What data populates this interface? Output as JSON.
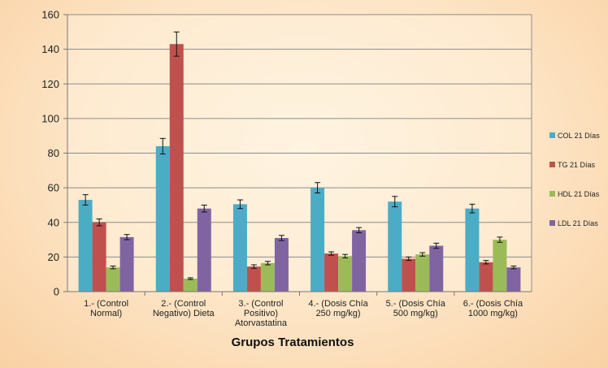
{
  "chart_data": {
    "type": "bar",
    "xlabel": "Grupos Tratamientos",
    "ylabel": "",
    "ylim": [
      0,
      160
    ],
    "yticks": [
      0,
      20,
      40,
      60,
      80,
      100,
      120,
      140,
      160
    ],
    "grid": true,
    "legend_position": "right",
    "categories": [
      [
        "1.- (Control",
        "Normal)"
      ],
      [
        "2.- (Control",
        "Negativo) Dieta"
      ],
      [
        "3.- (Control",
        "Positivo)",
        "Atorvastatina"
      ],
      [
        "4.- (Dosis Chía",
        "250 mg/kg)"
      ],
      [
        "5.- (Dosis Chía",
        "500 mg/kg)"
      ],
      [
        "6.- (Dosis Chía",
        "1000 mg/kg)"
      ]
    ],
    "series": [
      {
        "name": "COL 21 Días",
        "color": "#4bacc6",
        "values": [
          53,
          84,
          50.5,
          60,
          52,
          48
        ],
        "errors": [
          3,
          4.5,
          2.5,
          3,
          3,
          2.5
        ]
      },
      {
        "name": "TG 21 Días",
        "color": "#c0504d",
        "values": [
          40,
          143,
          14.5,
          22,
          19,
          17
        ],
        "errors": [
          2,
          7,
          1,
          1,
          1,
          1
        ]
      },
      {
        "name": "HDL 21 Días",
        "color": "#9bbb59",
        "values": [
          14,
          7.5,
          16.5,
          20.5,
          21.5,
          30
        ],
        "errors": [
          0.8,
          0.5,
          1,
          1,
          1,
          1.5
        ]
      },
      {
        "name": "LDL 21 Días",
        "color": "#8064a2",
        "values": [
          31.5,
          48,
          31,
          35.5,
          26.5,
          14
        ],
        "errors": [
          1.5,
          2,
          1.5,
          1.5,
          1.5,
          0.8
        ]
      }
    ]
  }
}
